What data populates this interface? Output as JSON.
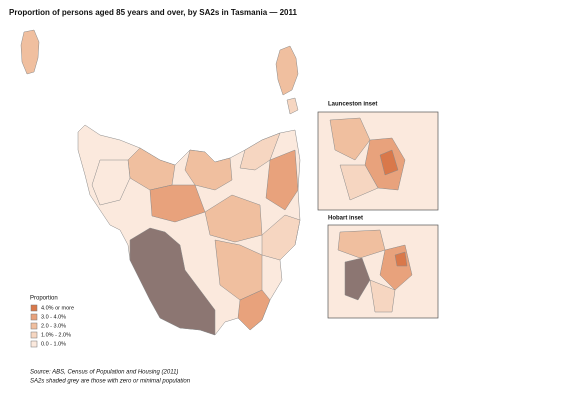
{
  "title": "Proportion of persons aged 85 years and over, by SA2s in Tasmania — 2011",
  "insets": [
    {
      "label": "Launceston inset"
    },
    {
      "label": "Hobart inset"
    }
  ],
  "legend": {
    "title": "Proportion",
    "items": [
      {
        "label": "4.0% or more",
        "color": "#d9784a"
      },
      {
        "label": "3.0    - 4.0%",
        "color": "#e8a27c"
      },
      {
        "label": "2.0    - 3.0%",
        "color": "#f0bf9f"
      },
      {
        "label": "1.0% - 2.0%",
        "color": "#f6d6c1"
      },
      {
        "label": "0.0    - 1.0%",
        "color": "#fbe9dd"
      }
    ]
  },
  "notes": [
    "Source: ABS, Census of Population and Housing (2011)",
    "SA2s shaded grey are those with zero or minimal population"
  ]
}
